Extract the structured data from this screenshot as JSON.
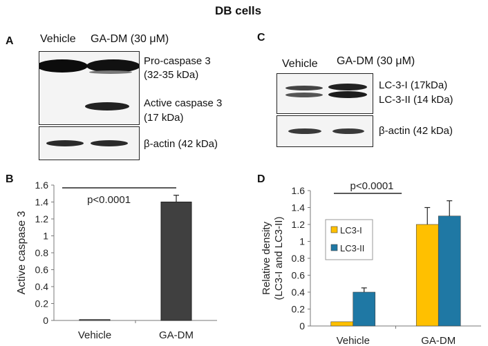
{
  "figure": {
    "title": "DB cells",
    "panel_a": {
      "letter": "A",
      "header": {
        "vehicle": "Vehicle",
        "treatment": "GA-DM (30 μM)"
      },
      "labels": {
        "pro1": "Pro-caspase 3",
        "pro2": "(32-35 kDa)",
        "act1": "Active caspase 3",
        "act2": "(17 kDa)",
        "actin": "β-actin (42 kDa)"
      }
    },
    "panel_c": {
      "letter": "C",
      "header": {
        "vehicle": "Vehicle",
        "treatment": "GA-DM (30 μM)"
      },
      "labels": {
        "lc3i": "LC-3-I (17kDa)",
        "lc3ii": "LC-3-II (14 kDa)",
        "actin": "β-actin (42 kDa)"
      }
    },
    "panel_b_letter": "B",
    "panel_d_letter": "D"
  },
  "chart_data": [
    {
      "type": "bar",
      "panel": "B",
      "categories": [
        "Vehicle",
        "GA-DM"
      ],
      "values": [
        0.01,
        1.4
      ],
      "errors": [
        0,
        0.08
      ],
      "ylabel": "Active caspase 3",
      "ylim": [
        0,
        1.6
      ],
      "yticks": [
        "0",
        "0.2",
        "0.4",
        "0.6",
        "0.8",
        "1",
        "1.2",
        "1.4",
        "1.6"
      ],
      "annotation": "p<0.0001",
      "colors": [
        "#ffffff",
        "#404040"
      ]
    },
    {
      "type": "bar",
      "panel": "D",
      "categories": [
        "Vehicle",
        "GA-DM"
      ],
      "series": [
        {
          "name": "LC3-I",
          "values": [
            0.05,
            1.2
          ],
          "errors": [
            0,
            0.2
          ],
          "color": "#ffc000"
        },
        {
          "name": "LC3-II",
          "values": [
            0.4,
            1.3
          ],
          "errors": [
            0.05,
            0.18
          ],
          "color": "#1f78a4"
        }
      ],
      "ylabel": [
        "Relative density",
        "(LC3-I and LC3-II)"
      ],
      "ylim": [
        0,
        1.6
      ],
      "yticks": [
        "0",
        "0.2",
        "0.4",
        "0.6",
        "0.8",
        "1",
        "1.2",
        "1.4",
        "1.6"
      ],
      "annotation": "p<0.0001",
      "legend": "inside-top-left"
    }
  ]
}
